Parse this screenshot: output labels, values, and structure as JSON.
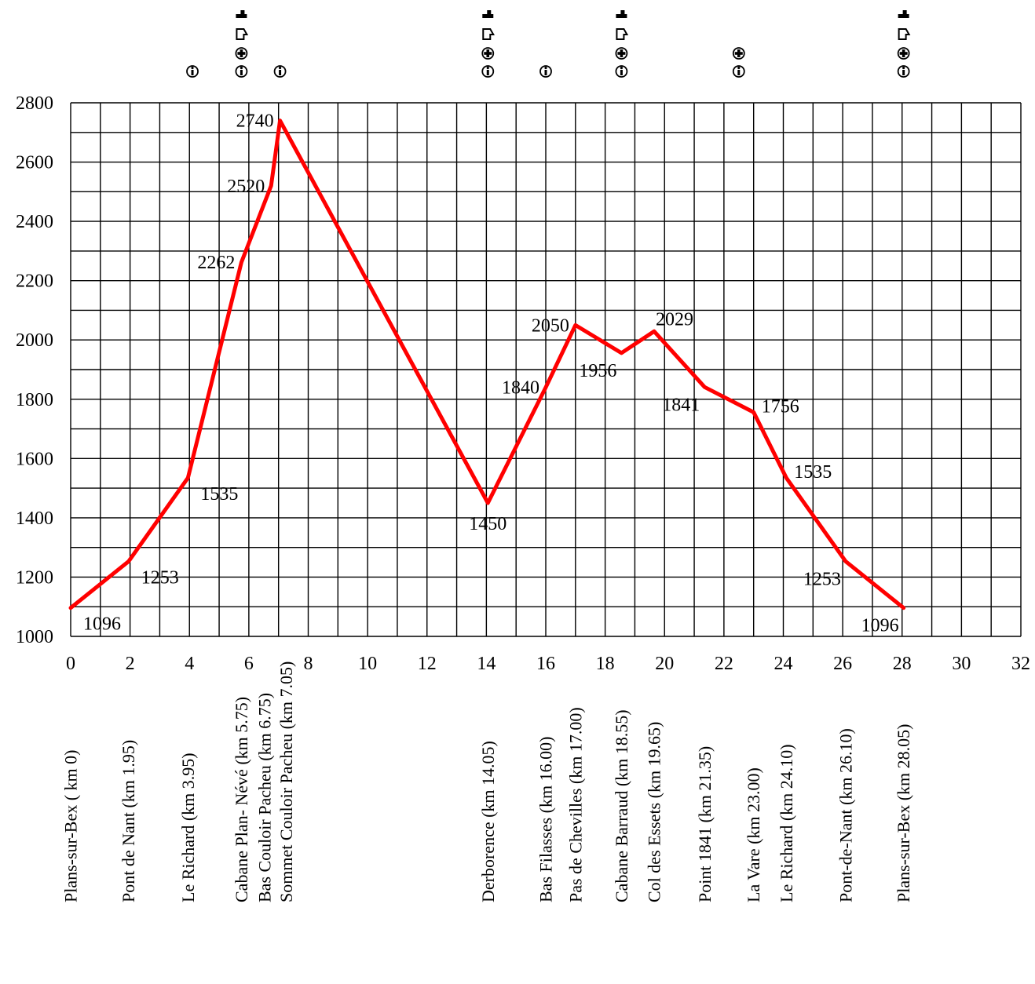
{
  "chart_data": {
    "type": "line",
    "title": "",
    "xlabel": "",
    "ylabel": "",
    "xlim": [
      0,
      32
    ],
    "ylim": [
      1000,
      2800
    ],
    "x_ticks": [
      0,
      2,
      4,
      6,
      8,
      10,
      12,
      14,
      16,
      18,
      20,
      22,
      24,
      26,
      28,
      30,
      32
    ],
    "y_ticks": [
      1000,
      1200,
      1400,
      1600,
      1800,
      2000,
      2200,
      2400,
      2600,
      2800
    ],
    "grid": true,
    "line_color": "#ff0000",
    "series": [
      {
        "points": [
          {
            "x": 0,
            "y": 1096
          },
          {
            "x": 1.95,
            "y": 1253
          },
          {
            "x": 3.95,
            "y": 1535
          },
          {
            "x": 5.75,
            "y": 2262
          },
          {
            "x": 6.75,
            "y": 2520
          },
          {
            "x": 7.05,
            "y": 2740
          },
          {
            "x": 14.05,
            "y": 1450
          },
          {
            "x": 16.0,
            "y": 1840
          },
          {
            "x": 17.0,
            "y": 2050
          },
          {
            "x": 18.55,
            "y": 1956
          },
          {
            "x": 19.65,
            "y": 2029
          },
          {
            "x": 21.35,
            "y": 1841
          },
          {
            "x": 23.0,
            "y": 1756
          },
          {
            "x": 24.1,
            "y": 1535
          },
          {
            "x": 26.1,
            "y": 1253
          },
          {
            "x": 28.05,
            "y": 1096
          }
        ]
      }
    ],
    "annotations": [
      {
        "text": "1096",
        "x": 0,
        "y": 1096,
        "pos": "below-right"
      },
      {
        "text": "1253",
        "x": 1.95,
        "y": 1253,
        "pos": "below-right"
      },
      {
        "text": "1535",
        "x": 3.95,
        "y": 1535,
        "pos": "below-right"
      },
      {
        "text": "2262",
        "x": 5.75,
        "y": 2262,
        "pos": "left"
      },
      {
        "text": "2520",
        "x": 6.75,
        "y": 2520,
        "pos": "left"
      },
      {
        "text": "2740",
        "x": 7.05,
        "y": 2740,
        "pos": "left"
      },
      {
        "text": "1450",
        "x": 14.05,
        "y": 1450,
        "pos": "below"
      },
      {
        "text": "1840",
        "x": 16.0,
        "y": 1840,
        "pos": "left"
      },
      {
        "text": "2050",
        "x": 17.0,
        "y": 2050,
        "pos": "left"
      },
      {
        "text": "1956",
        "x": 18.55,
        "y": 1956,
        "pos": "below-left"
      },
      {
        "text": "2029",
        "x": 19.65,
        "y": 2029,
        "pos": "above-right"
      },
      {
        "text": "1841",
        "x": 21.35,
        "y": 1841,
        "pos": "below-left"
      },
      {
        "text": "1756",
        "x": 23.0,
        "y": 1756,
        "pos": "right"
      },
      {
        "text": "1535",
        "x": 24.1,
        "y": 1535,
        "pos": "right"
      },
      {
        "text": "1253",
        "x": 26.1,
        "y": 1253,
        "pos": "below-left"
      },
      {
        "text": "1096",
        "x": 28.05,
        "y": 1096,
        "pos": "below-left"
      }
    ],
    "stations": [
      {
        "label": "Plans-sur-Bex ( km 0)",
        "km": 0
      },
      {
        "label": "Pont de Nant (km 1.95)",
        "km": 1.95
      },
      {
        "label": "Le Richard (km 3.95)",
        "km": 3.95
      },
      {
        "label": "Cabane Plan- Névé (km 5.75)",
        "km": 5.75
      },
      {
        "label": "Bas Couloir Pacheu (km 6.75)",
        "km": 6.75
      },
      {
        "label": "Sommet Couloir Pacheu (km 7.05)",
        "km": 7.05
      },
      {
        "label": "Derborence (km 14.05)",
        "km": 14.05
      },
      {
        "label": "Bas Filasses (km 16.00)",
        "km": 16.0
      },
      {
        "label": "Pas de Chevilles (km 17.00)",
        "km": 17.0
      },
      {
        "label": "Cabane Barraud (km 18.55)",
        "km": 18.55
      },
      {
        "label": "Col des Essets (km 19.65)",
        "km": 19.65
      },
      {
        "label": "Point 1841 (km 21.35)",
        "km": 21.35
      },
      {
        "label": "La Vare (km 23.00)",
        "km": 23.0
      },
      {
        "label": "Le Richard (km 24.10)",
        "km": 24.1
      },
      {
        "label": "Pont-de-Nant (km 26.10)",
        "km": 26.1
      },
      {
        "label": "Plans-sur-Bex (km 28.05)",
        "km": 28.05
      }
    ],
    "service_icons": [
      {
        "km": 4.1,
        "icons": [
          "info-icon"
        ]
      },
      {
        "km": 5.75,
        "icons": [
          "info-icon",
          "first-aid-icon",
          "refreshment-icon",
          "food-icon"
        ]
      },
      {
        "km": 7.05,
        "icons": [
          "info-icon"
        ]
      },
      {
        "km": 14.05,
        "icons": [
          "info-icon",
          "first-aid-icon",
          "refreshment-icon",
          "food-icon"
        ]
      },
      {
        "km": 16.0,
        "icons": [
          "info-icon"
        ]
      },
      {
        "km": 18.55,
        "icons": [
          "info-icon",
          "first-aid-icon",
          "refreshment-icon",
          "food-icon"
        ]
      },
      {
        "km": 22.5,
        "icons": [
          "info-icon",
          "first-aid-icon"
        ]
      },
      {
        "km": 28.05,
        "icons": [
          "info-icon",
          "first-aid-icon",
          "refreshment-icon",
          "food-icon"
        ]
      }
    ]
  }
}
